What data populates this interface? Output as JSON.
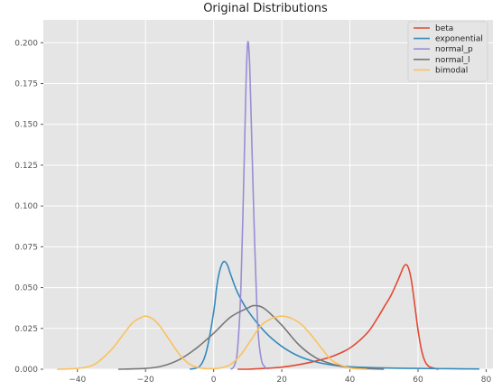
{
  "chart_data": {
    "type": "line",
    "title": "Original Distributions",
    "xlabel": "",
    "ylabel": "",
    "xlim": [
      -50,
      82
    ],
    "ylim": [
      0,
      0.214
    ],
    "xticks": [
      -40,
      -20,
      0,
      20,
      40,
      60,
      80
    ],
    "xtick_labels": [
      "−40",
      "−20",
      "0",
      "20",
      "40",
      "60",
      "80"
    ],
    "yticks": [
      0,
      0.025,
      0.05,
      0.075,
      0.1,
      0.125,
      0.15,
      0.175,
      0.2
    ],
    "ytick_labels": [
      "0.000",
      "0.025",
      "0.050",
      "0.075",
      "0.100",
      "0.125",
      "0.150",
      "0.175",
      "0.200"
    ],
    "grid": true,
    "legend_position": "top-right",
    "background_color": "#e5e5e5",
    "grid_color": "#ffffff",
    "series": [
      {
        "name": "beta",
        "color": "#e24a33",
        "x": [
          7,
          10,
          15,
          20,
          25,
          30,
          35,
          40,
          45,
          48,
          50,
          52,
          54,
          55,
          56,
          57,
          58,
          59,
          60,
          61,
          62,
          63,
          64,
          66
        ],
        "y": [
          0,
          0,
          0.0005,
          0.0013,
          0.0028,
          0.005,
          0.008,
          0.013,
          0.022,
          0.031,
          0.038,
          0.045,
          0.054,
          0.059,
          0.0635,
          0.063,
          0.055,
          0.04,
          0.024,
          0.012,
          0.005,
          0.002,
          0.001,
          0
        ]
      },
      {
        "name": "exponential",
        "color": "#348abd",
        "x": [
          -7,
          -4,
          -2,
          0,
          1,
          2,
          3,
          4,
          5,
          7,
          10,
          15,
          20,
          25,
          30,
          35,
          40,
          50,
          60,
          70,
          78
        ],
        "y": [
          0,
          0.002,
          0.012,
          0.035,
          0.052,
          0.062,
          0.066,
          0.064,
          0.058,
          0.047,
          0.036,
          0.023,
          0.014,
          0.008,
          0.0045,
          0.0025,
          0.0015,
          0.0008,
          0.0005,
          0.0003,
          0.0002
        ]
      },
      {
        "name": "normal_p",
        "color": "#988ed5",
        "x": [
          5,
          6,
          7,
          8,
          9,
          9.5,
          10,
          10.5,
          11,
          12,
          13,
          14,
          15,
          16
        ],
        "y": [
          0,
          0.002,
          0.012,
          0.05,
          0.13,
          0.175,
          0.2,
          0.19,
          0.155,
          0.08,
          0.025,
          0.006,
          0.0015,
          0
        ]
      },
      {
        "name": "normal_l",
        "color": "#777777",
        "x": [
          -28,
          -20,
          -15,
          -10,
          -5,
          0,
          5,
          10,
          12,
          15,
          20,
          25,
          30,
          35,
          40,
          45,
          50
        ],
        "y": [
          0,
          0.0005,
          0.002,
          0.006,
          0.013,
          0.022,
          0.032,
          0.0375,
          0.039,
          0.037,
          0.027,
          0.015,
          0.007,
          0.003,
          0.001,
          0.0004,
          0
        ]
      },
      {
        "name": "bimodal",
        "color": "#fbc15e",
        "x": [
          -46,
          -40,
          -35,
          -30,
          -27,
          -24,
          -22,
          -20,
          -18,
          -16,
          -13,
          -10,
          -7,
          -4,
          -1,
          2,
          5,
          8,
          11,
          14,
          17,
          20,
          23,
          26,
          29,
          32,
          35,
          40,
          45
        ],
        "y": [
          0,
          0.0005,
          0.003,
          0.012,
          0.02,
          0.028,
          0.031,
          0.0325,
          0.031,
          0.027,
          0.018,
          0.009,
          0.003,
          0.0008,
          0.0003,
          0.0008,
          0.003,
          0.009,
          0.018,
          0.027,
          0.031,
          0.0325,
          0.031,
          0.027,
          0.02,
          0.012,
          0.005,
          0.0008,
          0
        ]
      }
    ]
  }
}
